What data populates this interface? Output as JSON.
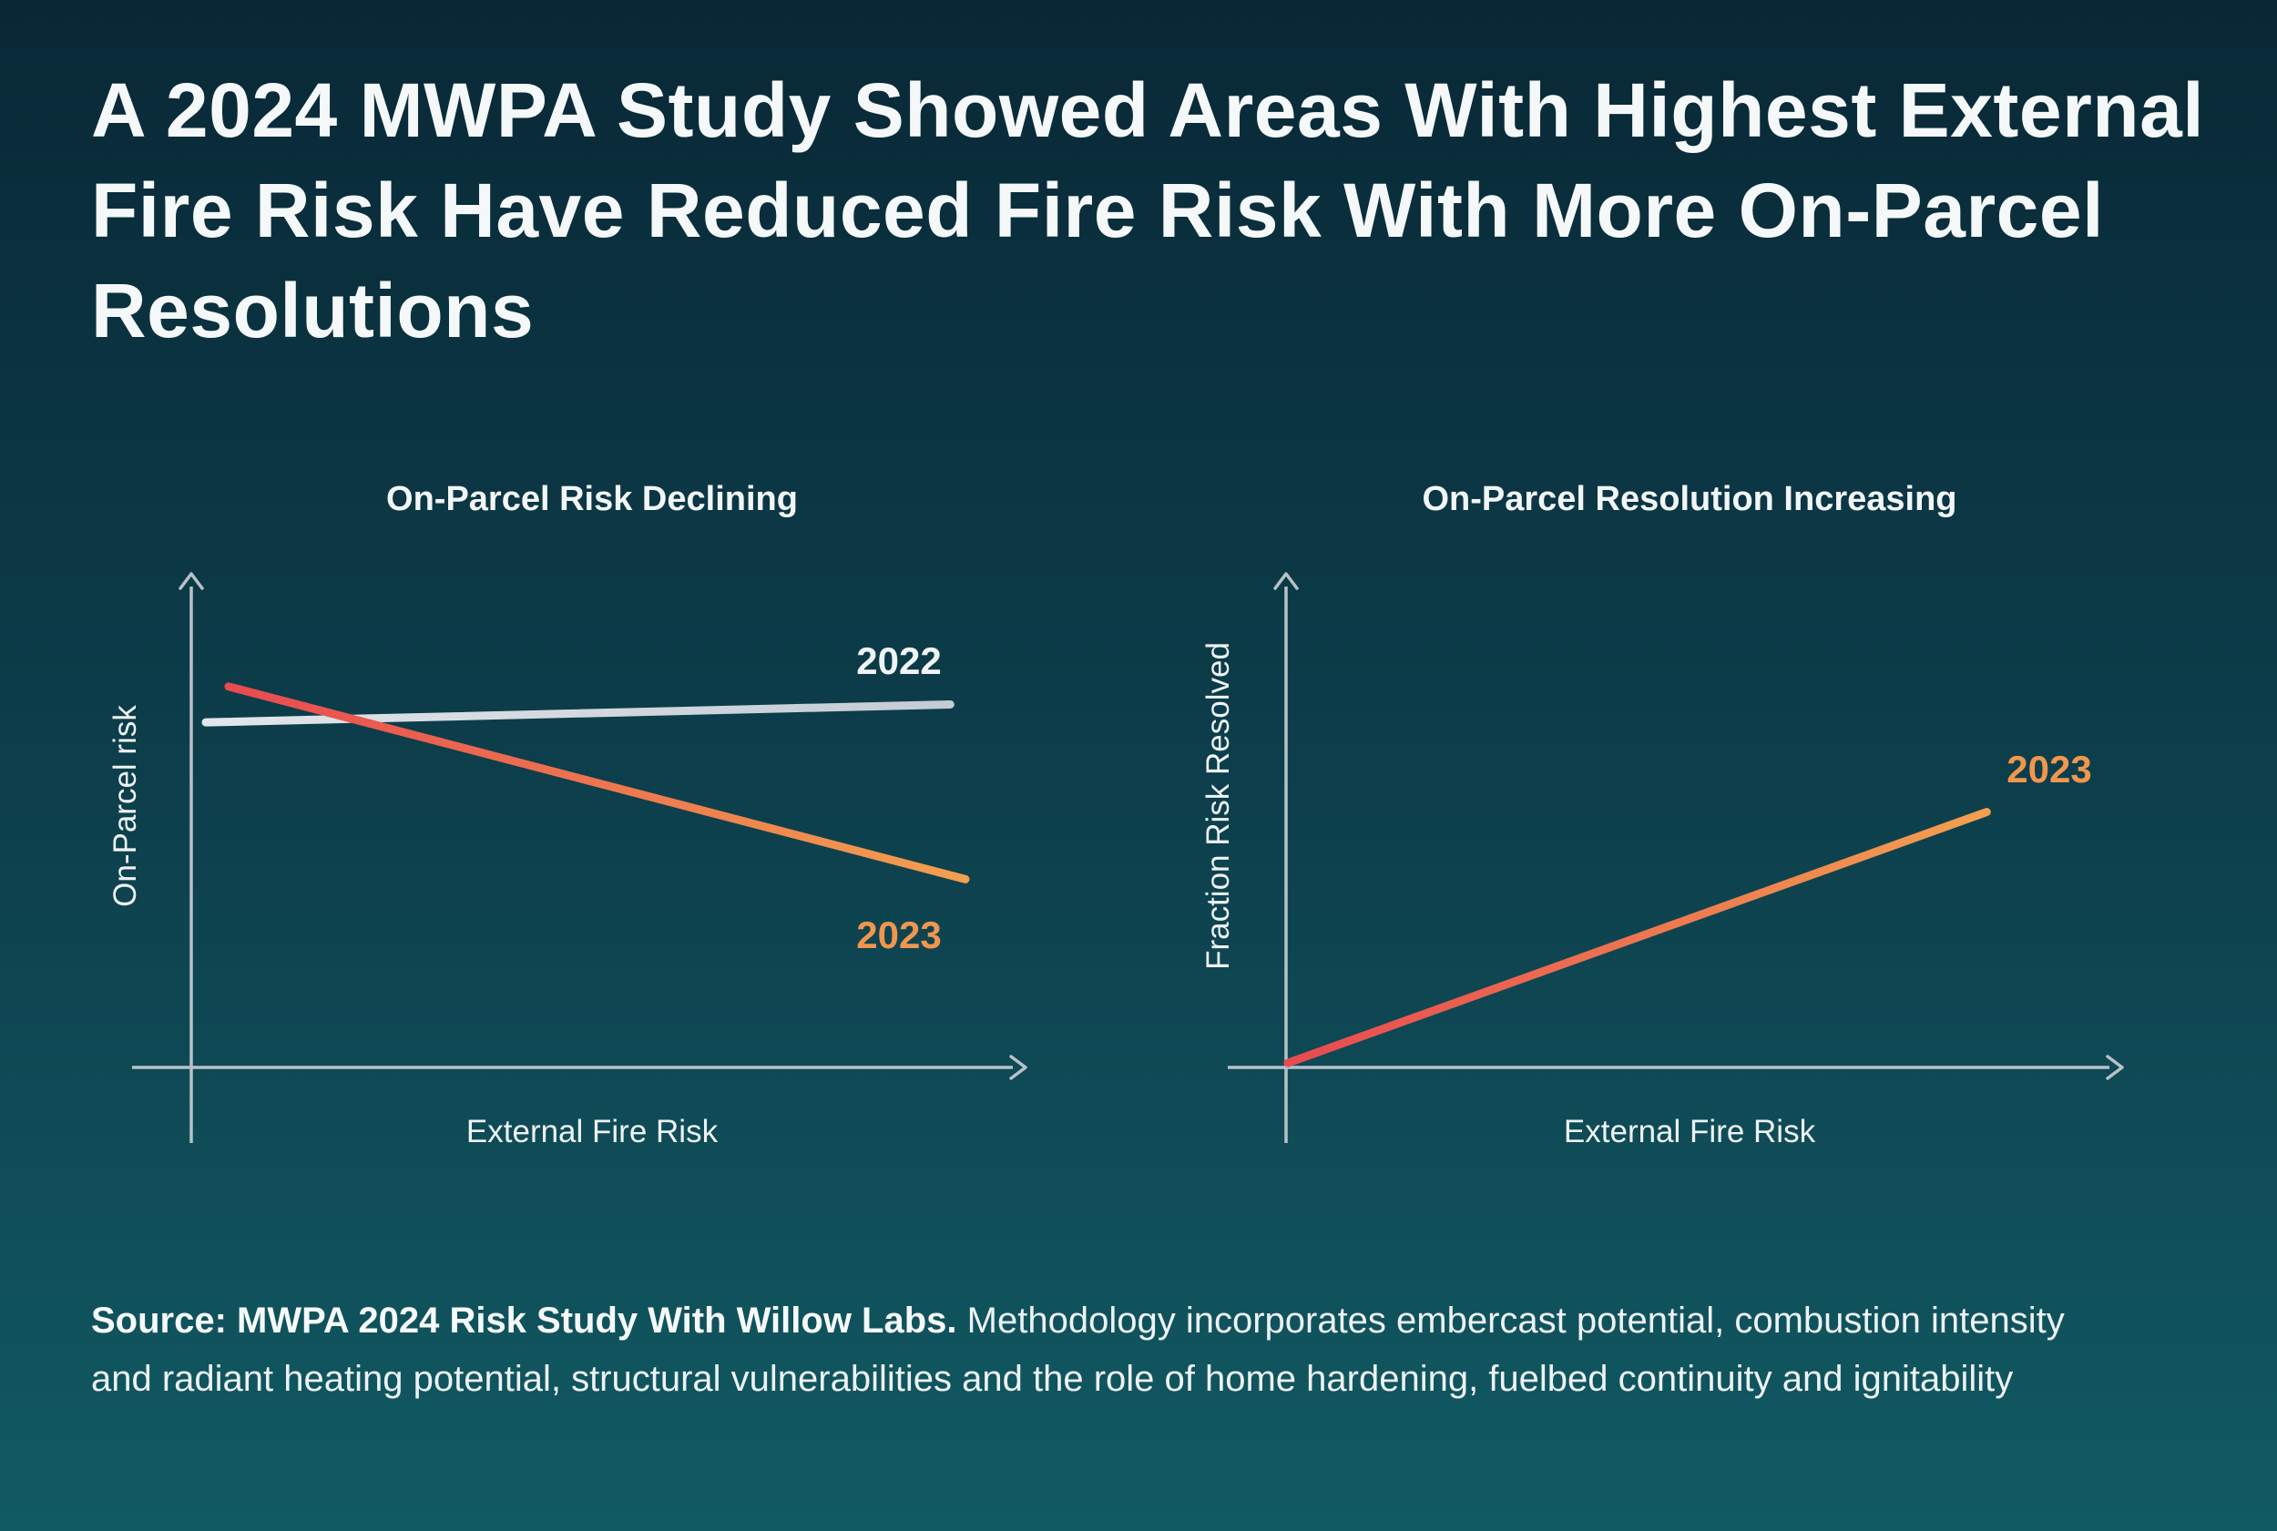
{
  "title": "A 2024 MWPA Study Showed Areas With Highest External Fire Risk Have Reduced Fire Risk With More On-Parcel Resolutions",
  "source": {
    "label_bold": "Source: MWPA 2024 Risk Study With Willow Labs.",
    "text": "Methodology incorporates embercast potential, combustion intensity and radiant heating potential, structural vulnerabilities and the role of home hardening, fuelbed continuity and ignitability"
  },
  "colors": {
    "background_top": "#092836",
    "background_mid": "#0d3f4c",
    "background_bottom": "#115a63",
    "axis": "#b6c2c8",
    "text": "#f2f6f7",
    "label_2023": "#f0964e",
    "line_2022_start": "#e2e6ea",
    "line_2022_end": "#c4cbd4",
    "line_2023_start": "#e84a50",
    "line_2023_end": "#f2a04f"
  },
  "chart_data": [
    {
      "type": "line",
      "title": "On-Parcel Risk Declining",
      "xlabel": "External Fire Risk",
      "ylabel": "On-Parcel risk",
      "xlim": [
        0,
        1
      ],
      "ylim": [
        0,
        1
      ],
      "grid": false,
      "legend_position": "inline-labels",
      "axis_ticks": "none",
      "series": [
        {
          "name": "2022",
          "x": [
            0.0,
            0.98
          ],
          "y": [
            0.77,
            0.81
          ],
          "color_start": "#e2e6ea",
          "color_end": "#c4cbd4"
        },
        {
          "name": "2023",
          "x": [
            0.03,
            1.0
          ],
          "y": [
            0.85,
            0.42
          ],
          "color_start": "#e84a50",
          "color_end": "#f2a04f"
        }
      ]
    },
    {
      "type": "line",
      "title": "On-Parcel Resolution Increasing",
      "xlabel": "External Fire Risk",
      "ylabel": "Fraction Risk Resolved",
      "xlim": [
        0,
        1
      ],
      "ylim": [
        0,
        1
      ],
      "grid": false,
      "legend_position": "inline-labels",
      "axis_ticks": "none",
      "series": [
        {
          "name": "2023",
          "x": [
            0.0,
            0.92
          ],
          "y": [
            0.01,
            0.57
          ],
          "color_start": "#e84a50",
          "color_end": "#f2a04f"
        }
      ]
    }
  ]
}
